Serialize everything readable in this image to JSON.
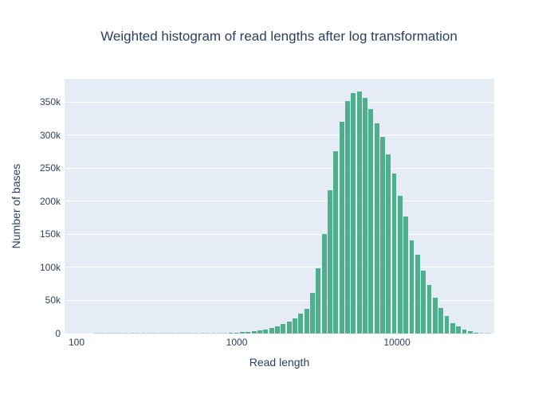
{
  "title": "Weighted histogram of read lengths after log transformation",
  "colors": {
    "text": "#2a3f5f",
    "plot_background": "#e5ecf6",
    "gridline": "#ffffff",
    "bar_fill": "#4daf8c",
    "page_background": "#ffffff"
  },
  "chart_data": {
    "type": "bar",
    "title": "Weighted histogram of read lengths after log transformation",
    "xlabel": "Read length",
    "ylabel": "Number of bases",
    "x_scale": "log",
    "grid": "horizontal-white-on-lightblue",
    "legend": "none",
    "ylim": [
      0,
      385000
    ],
    "xlim_log10": [
      1.9254,
      4.6065
    ],
    "x_ticks": [
      {
        "value": 100,
        "label": "100"
      },
      {
        "value": 1000,
        "label": "1000"
      },
      {
        "value": 10000,
        "label": "10000"
      }
    ],
    "y_ticks": [
      {
        "value": 0,
        "label": "0"
      },
      {
        "value": 50000,
        "label": "50k"
      },
      {
        "value": 100000,
        "label": "100k"
      },
      {
        "value": 150000,
        "label": "150k"
      },
      {
        "value": 200000,
        "label": "200k"
      },
      {
        "value": 250000,
        "label": "250k"
      },
      {
        "value": 300000,
        "label": "300k"
      },
      {
        "value": 350000,
        "label": "350k"
      }
    ],
    "x": [
      133,
      145,
      157,
      171,
      186,
      202,
      220,
      239,
      260,
      283,
      308,
      335,
      364,
      396,
      431,
      469,
      510,
      554,
      603,
      654,
      712,
      774,
      842,
      916,
      996,
      1083,
      1178,
      1281,
      1394,
      1516,
      1649,
      1793,
      1950,
      2121,
      2307,
      2509,
      2729,
      2968,
      3228,
      3511,
      3818,
      4153,
      4516,
      4912,
      5342,
      5810,
      6319,
      6872,
      7474,
      8128,
      8840,
      9614,
      10456,
      11372,
      12368,
      13451,
      14629,
      15910,
      17303,
      18819,
      20467,
      22260,
      24209,
      26330,
      28636,
      31144,
      33871,
      36838
    ],
    "values": [
      200,
      200,
      250,
      200,
      300,
      250,
      200,
      300,
      250,
      300,
      300,
      250,
      300,
      350,
      300,
      350,
      400,
      400,
      450,
      500,
      600,
      800,
      1000,
      1300,
      1700,
      2200,
      2800,
      3600,
      4700,
      6000,
      8000,
      10500,
      14000,
      18000,
      23000,
      30000,
      37000,
      61000,
      99000,
      151000,
      217000,
      275000,
      320000,
      351000,
      363000,
      366000,
      356000,
      339000,
      318000,
      297000,
      271000,
      242000,
      208000,
      177000,
      141000,
      119000,
      95000,
      73000,
      54000,
      39000,
      26000,
      16000,
      11000,
      6000,
      3200,
      1600,
      1000,
      700
    ]
  }
}
